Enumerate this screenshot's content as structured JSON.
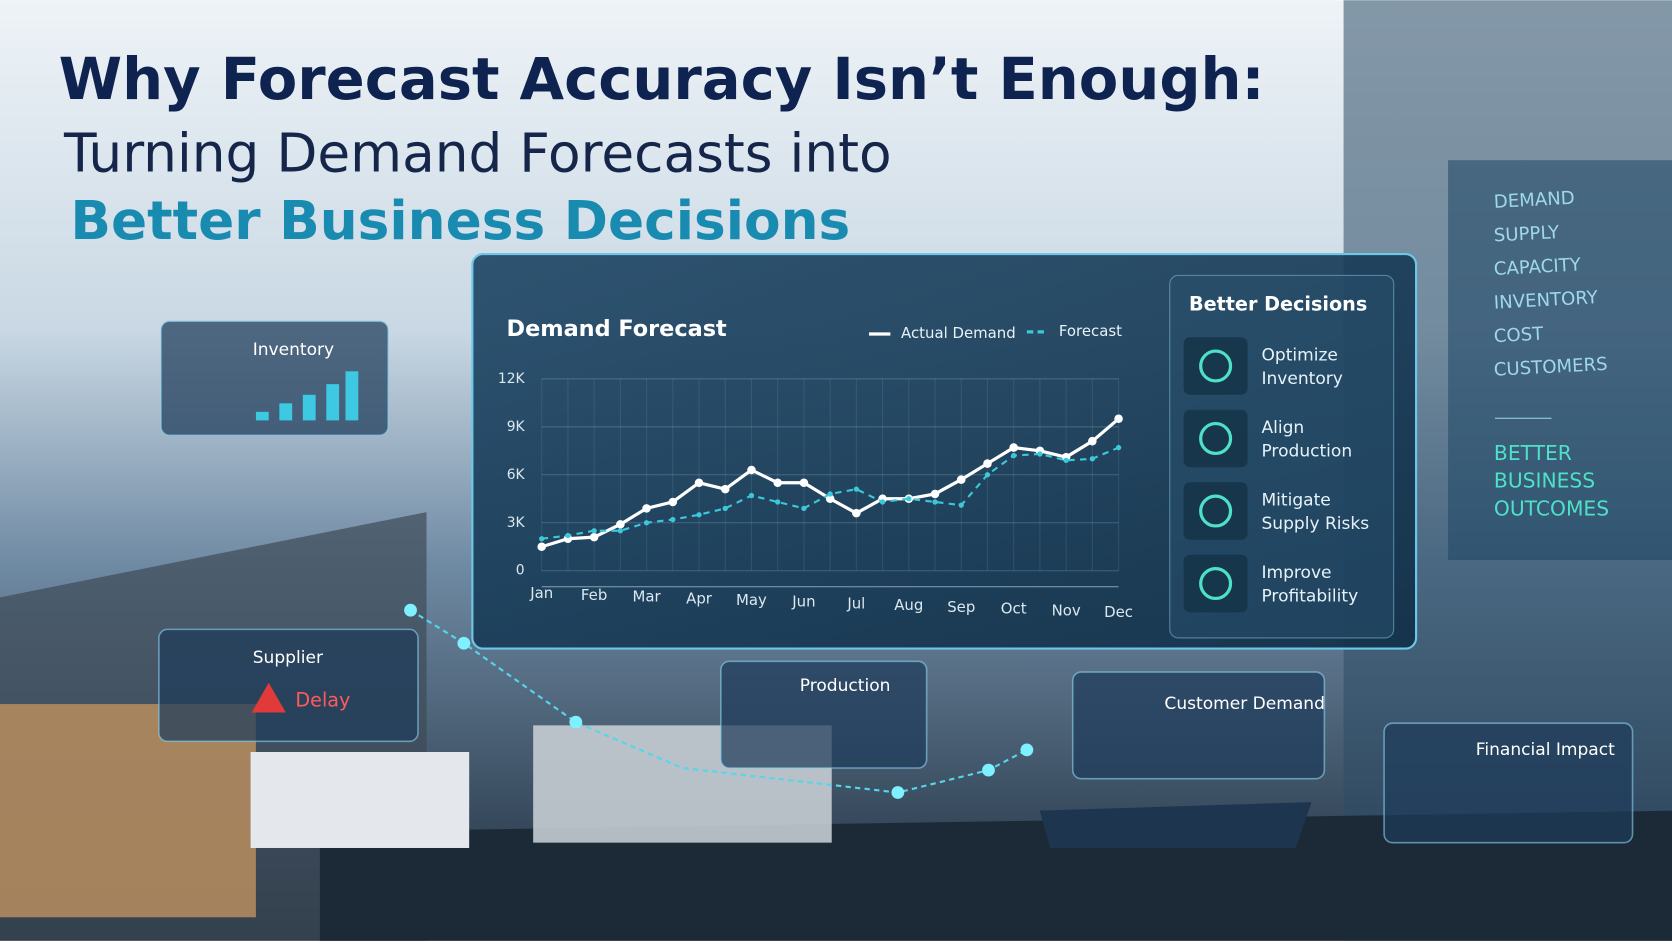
{
  "header": {
    "title": "Why Forecast Accuracy Isn’t Enough:",
    "subtitle": "Turning Demand Forecasts into",
    "highlight": "Better Business Decisions"
  },
  "cards": {
    "inventory": "Inventory",
    "supplier": "Supplier",
    "delay": "Delay",
    "production": "Production",
    "customer_demand": "Customer Demand",
    "financial_impact": "Financial Impact"
  },
  "decisions": {
    "title": "Better Decisions",
    "items": [
      [
        "Optimize",
        "Inventory"
      ],
      [
        "Align",
        "Production"
      ],
      [
        "Mitigate",
        "Supply Risks"
      ],
      [
        "Improve",
        "Profitability"
      ]
    ]
  },
  "side_panel": {
    "items": [
      "DEMAND",
      "SUPPLY",
      "CAPACITY",
      "INVENTORY",
      "COST",
      "CUSTOMERS"
    ],
    "outcome": [
      "BETTER",
      "BUSINESS",
      "OUTCOMES"
    ]
  },
  "chart_data": {
    "type": "line",
    "title": "Demand Forecast",
    "categories": [
      "Jan",
      null,
      "Feb",
      null,
      "Mar",
      null,
      "Apr",
      null,
      "May",
      null,
      "Jun",
      null,
      "Jul",
      null,
      "Aug",
      null,
      "Sep",
      null,
      "Oct",
      null,
      "Nov",
      null,
      "Dec"
    ],
    "series": [
      {
        "name": "Actual Demand",
        "color": "#ffffff",
        "dash": false,
        "values": [
          1500,
          2000,
          2100,
          2900,
          3900,
          4300,
          5500,
          5100,
          6300,
          5500,
          5500,
          4500,
          3600,
          4500,
          4500,
          4800,
          5700,
          6700,
          7700,
          7500,
          7100,
          8100,
          9500
        ]
      },
      {
        "name": "Forecast",
        "color": "#3cc8d8",
        "dash": true,
        "values": [
          2000,
          2200,
          2500,
          2500,
          3000,
          3200,
          3500,
          3900,
          4700,
          4300,
          3900,
          4800,
          5100,
          4300,
          4500,
          4300,
          4100,
          6000,
          7200,
          7300,
          6900,
          7000,
          7700
        ]
      }
    ],
    "ylim": [
      0,
      12000
    ],
    "yticks": [
      0,
      {
        "value": 3000,
        "label": "3K"
      },
      {
        "value": 6000,
        "label": "6K"
      },
      {
        "value": 9000,
        "label": "9K"
      },
      {
        "value": 12000,
        "label": "12K"
      }
    ],
    "grid": true
  }
}
